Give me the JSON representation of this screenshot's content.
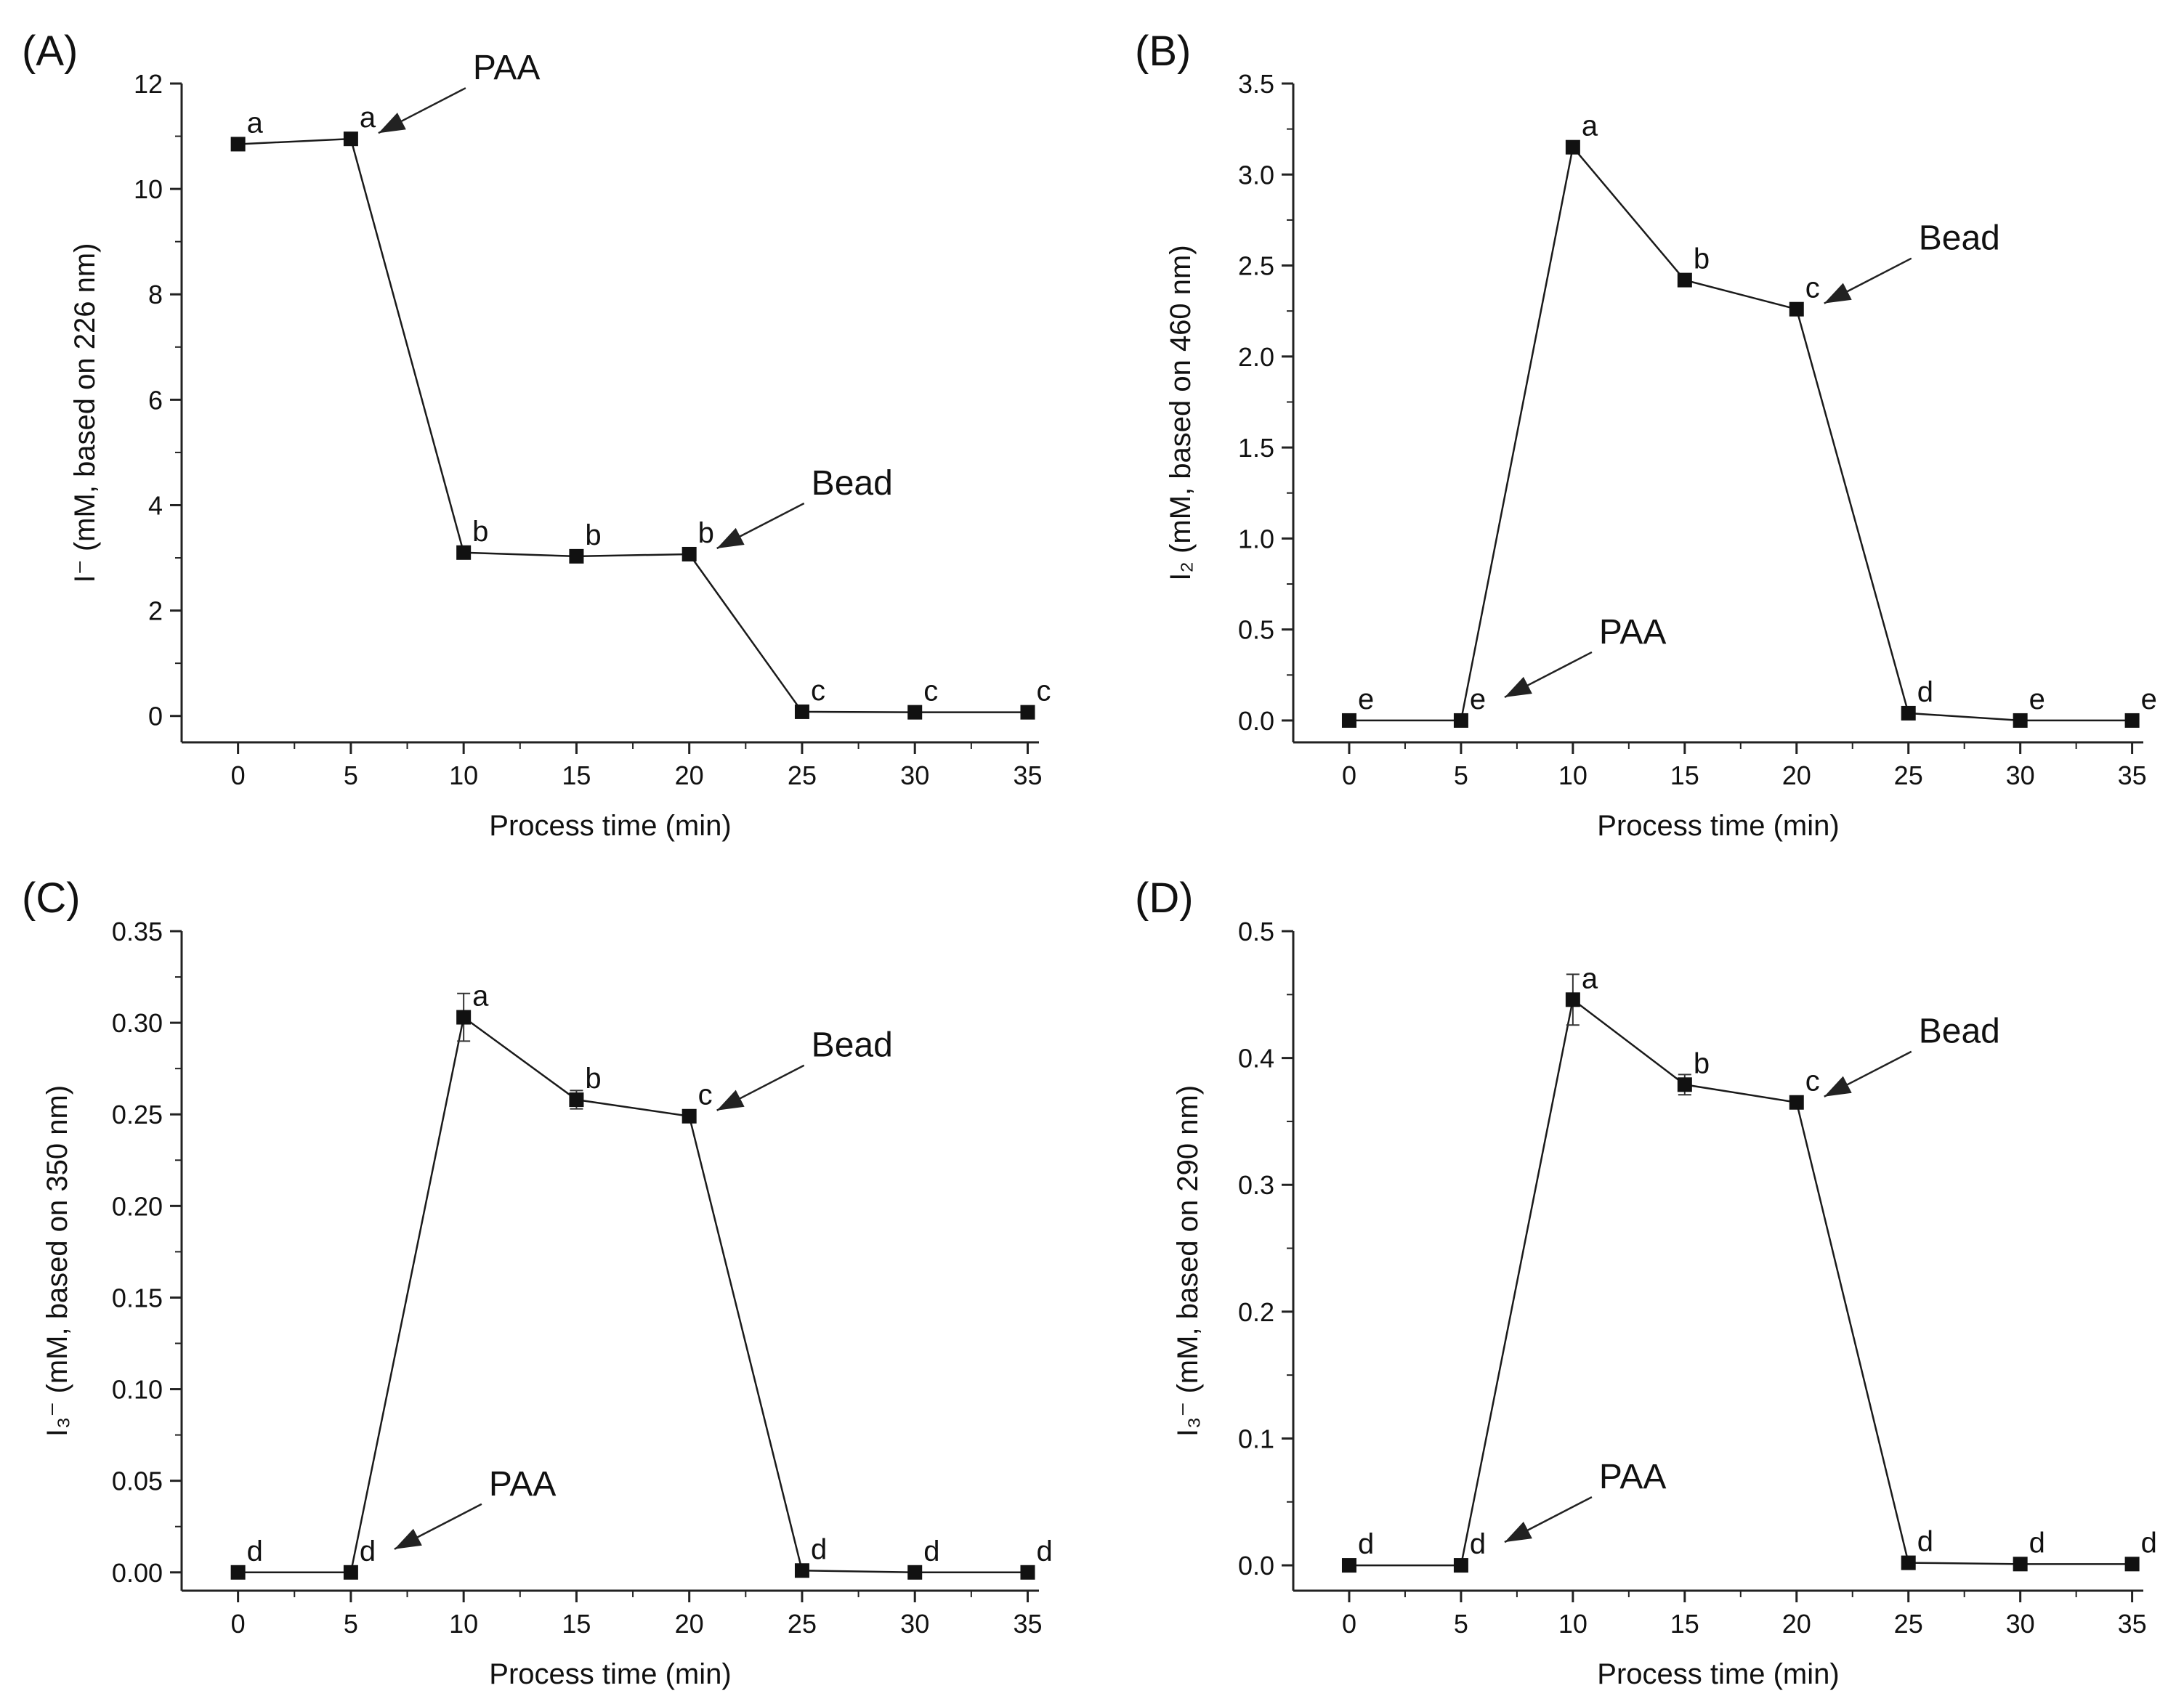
{
  "figure": {
    "background": "#ffffff",
    "line_color": "#1a1a1a",
    "marker_color": "#111111",
    "marker_shape": "filled-square"
  },
  "chart_data": [
    {
      "panel": "(A)",
      "type": "line",
      "xlabel": "Process time (min)",
      "ylabel": "I⁻ (mM, based on 226 nm)",
      "xlim": [
        -2.5,
        35.5
      ],
      "ylim": [
        -0.5,
        12
      ],
      "xticks": [
        0,
        5,
        10,
        15,
        20,
        25,
        30,
        35
      ],
      "yticks": [
        0,
        2,
        4,
        6,
        8,
        10,
        12
      ],
      "ytick_labels": [
        "0",
        "2",
        "4",
        "6",
        "8",
        "10",
        "12"
      ],
      "series": [
        {
          "name": "I⁻",
          "x": [
            0,
            5,
            10,
            15,
            20,
            25,
            30,
            35
          ],
          "y": [
            10.85,
            10.95,
            3.1,
            3.03,
            3.07,
            0.08,
            0.07,
            0.07
          ],
          "error": [
            0.1,
            0.05,
            0.05,
            0.04,
            0.05,
            0.02,
            0.02,
            0.02
          ],
          "letters": [
            "a",
            "a",
            "b",
            "b",
            "b",
            "c",
            "c",
            "c"
          ]
        }
      ],
      "annotations": [
        {
          "text": "PAA",
          "x": 5,
          "y": 10.95
        },
        {
          "text": "Bead",
          "x": 20,
          "y": 3.07
        }
      ]
    },
    {
      "panel": "(B)",
      "type": "line",
      "xlabel": "Process time (min)",
      "ylabel": "I₂ (mM, based on 460 nm)",
      "xlim": [
        -2.5,
        35.5
      ],
      "ylim": [
        -0.12,
        3.5
      ],
      "xticks": [
        0,
        5,
        10,
        15,
        20,
        25,
        30,
        35
      ],
      "yticks": [
        0,
        0.5,
        1,
        1.5,
        2,
        2.5,
        3,
        3.5
      ],
      "ytick_labels": [
        "0.0",
        "0.5",
        "1.0",
        "1.5",
        "2.0",
        "2.5",
        "3.0",
        "3.5"
      ],
      "series": [
        {
          "name": "I₂",
          "x": [
            0,
            5,
            10,
            15,
            20,
            25,
            30,
            35
          ],
          "y": [
            0.0,
            0.0,
            3.15,
            2.42,
            2.26,
            0.04,
            0.0,
            0.0
          ],
          "error": [
            0.01,
            0.01,
            0.03,
            0.03,
            0.03,
            0.01,
            0.01,
            0.01
          ],
          "letters": [
            "e",
            "e",
            "a",
            "b",
            "c",
            "d",
            "e",
            "e"
          ]
        }
      ],
      "annotations": [
        {
          "text": "PAA",
          "x": 5,
          "y": 0.0
        },
        {
          "text": "Bead",
          "x": 20,
          "y": 2.26
        }
      ]
    },
    {
      "panel": "(C)",
      "type": "line",
      "xlabel": "Process time (min)",
      "ylabel": "I₃⁻ (mM, based on 350 nm)",
      "xlim": [
        -2.5,
        35.5
      ],
      "ylim": [
        -0.01,
        0.35
      ],
      "xticks": [
        0,
        5,
        10,
        15,
        20,
        25,
        30,
        35
      ],
      "yticks": [
        0,
        0.05,
        0.1,
        0.15,
        0.2,
        0.25,
        0.3,
        0.35
      ],
      "ytick_labels": [
        "0.00",
        "0.05",
        "0.10",
        "0.15",
        "0.20",
        "0.25",
        "0.30",
        "0.35"
      ],
      "series": [
        {
          "name": "I₃⁻",
          "x": [
            0,
            5,
            10,
            15,
            20,
            25,
            30,
            35
          ],
          "y": [
            0.0,
            0.0,
            0.303,
            0.258,
            0.249,
            0.001,
            0.0,
            0.0
          ],
          "error": [
            0.001,
            0.001,
            0.013,
            0.005,
            0.002,
            0.001,
            0.001,
            0.001
          ],
          "letters": [
            "d",
            "d",
            "a",
            "b",
            "c",
            "d",
            "d",
            "d"
          ]
        }
      ],
      "annotations": [
        {
          "text": "PAA",
          "x": 5,
          "y": 0.0
        },
        {
          "text": "Bead",
          "x": 20,
          "y": 0.249
        }
      ]
    },
    {
      "panel": "(D)",
      "type": "line",
      "xlabel": "Process time (min)",
      "ylabel": "I₃⁻ (mM, based on 290 nm)",
      "xlim": [
        -2.5,
        35.5
      ],
      "ylim": [
        -0.02,
        0.5
      ],
      "xticks": [
        0,
        5,
        10,
        15,
        20,
        25,
        30,
        35
      ],
      "yticks": [
        0,
        0.1,
        0.2,
        0.3,
        0.4,
        0.5
      ],
      "ytick_labels": [
        "0.0",
        "0.1",
        "0.2",
        "0.3",
        "0.4",
        "0.5"
      ],
      "series": [
        {
          "name": "I₃⁻",
          "x": [
            0,
            5,
            10,
            15,
            20,
            25,
            30,
            35
          ],
          "y": [
            0.0,
            0.0,
            0.446,
            0.379,
            0.365,
            0.002,
            0.001,
            0.001
          ],
          "error": [
            0.001,
            0.001,
            0.02,
            0.008,
            0.003,
            0.001,
            0.001,
            0.001
          ],
          "letters": [
            "d",
            "d",
            "a",
            "b",
            "c",
            "d",
            "d",
            "d"
          ]
        }
      ],
      "annotations": [
        {
          "text": "PAA",
          "x": 5,
          "y": 0.0
        },
        {
          "text": "Bead",
          "x": 20,
          "y": 0.365
        }
      ]
    }
  ]
}
